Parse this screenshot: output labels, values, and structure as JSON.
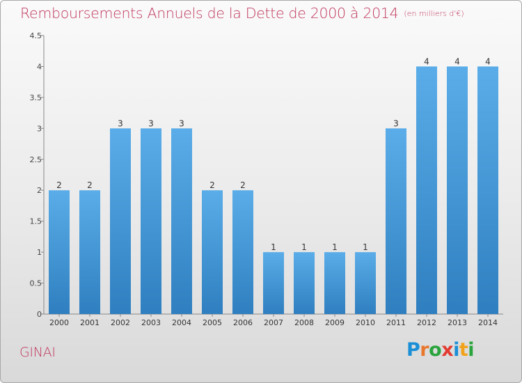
{
  "header": {
    "title": "Remboursements Annuels de la Dette de 2000 à 2014",
    "unit": "(en milliers d'€)"
  },
  "footer": {
    "location": "GINAI",
    "brand_letters": [
      "P",
      "r",
      "o",
      "x",
      "i",
      "t",
      "i"
    ],
    "brand_colors": [
      "#1a8fd6",
      "#e8772e",
      "#2aa43c",
      "#e33b32",
      "#1a8fd6",
      "#f2a21a",
      "#2aa43c"
    ]
  },
  "colors": {
    "title": "#c0395e",
    "bar_light": "#5aade8",
    "bar_dark": "#2f7fc0"
  },
  "chart_data": {
    "type": "bar",
    "title": "Remboursements Annuels de la Dette de 2000 à 2014",
    "xlabel": "",
    "ylabel": "",
    "categories": [
      "2000",
      "2001",
      "2002",
      "2003",
      "2004",
      "2005",
      "2006",
      "2007",
      "2008",
      "2009",
      "2010",
      "2011",
      "2012",
      "2013",
      "2014"
    ],
    "values": [
      2,
      2,
      3,
      3,
      3,
      2,
      2,
      1,
      1,
      1,
      1,
      3,
      4,
      4,
      4
    ],
    "data_labels": [
      "2",
      "2",
      "3",
      "3",
      "3",
      "2",
      "2",
      "1",
      "1",
      "1",
      "1",
      "3",
      "4",
      "4",
      "4"
    ],
    "yticks": [
      "0",
      "0.5",
      "1",
      "1.5",
      "2",
      "2.5",
      "3",
      "3.5",
      "4",
      "4.5"
    ],
    "ylim": [
      0,
      4.5
    ],
    "grid": false,
    "legend": "none"
  }
}
